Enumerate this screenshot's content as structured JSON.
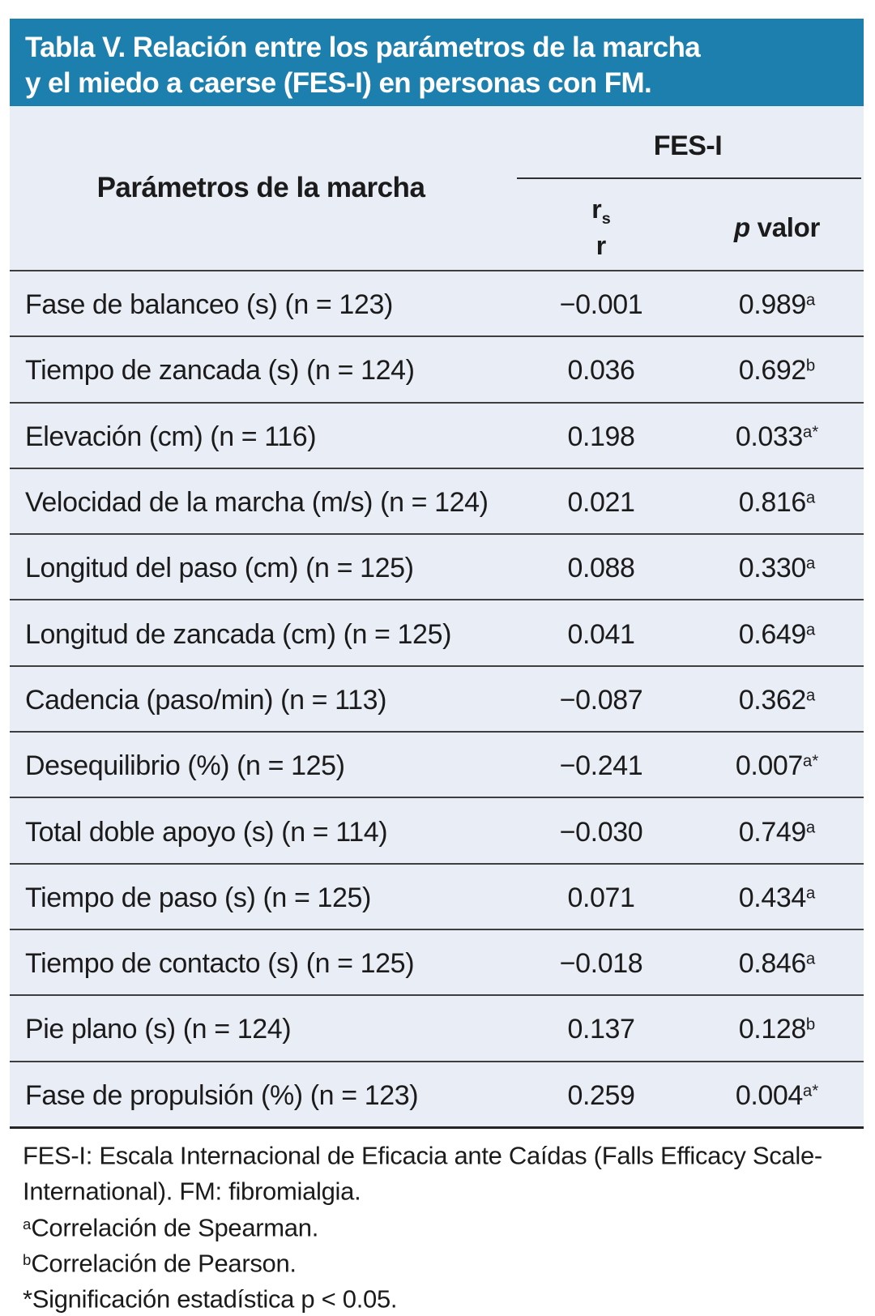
{
  "title": {
    "line1": "Tabla V. Relación entre los parámetros de la marcha",
    "line2": "y el miedo a caerse (FES-I) en personas con FM."
  },
  "table": {
    "param_header": "Parámetros de la marcha",
    "group_header": "FES-I",
    "col_r": {
      "base": "r",
      "sub": "s",
      "line2": "r"
    },
    "col_p": {
      "italic": "p",
      "rest": " valor"
    },
    "rows": [
      {
        "param": "Fase de balanceo (s) (n = 123)",
        "r": "−0.001",
        "p": "0.989",
        "p_sup": "a"
      },
      {
        "param": "Tiempo de zancada (s) (n = 124)",
        "r": "0.036",
        "p": "0.692",
        "p_sup": "b"
      },
      {
        "param": "Elevación (cm) (n = 116)",
        "r": "0.198",
        "p": "0.033",
        "p_sup": "a*"
      },
      {
        "param": "Velocidad de la marcha (m/s) (n = 124)",
        "r": "0.021",
        "p": "0.816",
        "p_sup": "a"
      },
      {
        "param": "Longitud del paso (cm) (n = 125)",
        "r": "0.088",
        "p": "0.330",
        "p_sup": "a"
      },
      {
        "param": "Longitud de zancada (cm) (n = 125)",
        "r": "0.041",
        "p": "0.649",
        "p_sup": "a"
      },
      {
        "param": "Cadencia (paso/min) (n = 113)",
        "r": "−0.087",
        "p": "0.362",
        "p_sup": "a"
      },
      {
        "param": "Desequilibrio (%) (n = 125)",
        "r": "−0.241",
        "p": "0.007",
        "p_sup": "a*"
      },
      {
        "param": "Total doble apoyo (s) (n = 114)",
        "r": "−0.030",
        "p": "0.749",
        "p_sup": "a"
      },
      {
        "param": "Tiempo de paso (s) (n = 125)",
        "r": "0.071",
        "p": "0.434",
        "p_sup": "a"
      },
      {
        "param": "Tiempo de contacto (s) (n = 125)",
        "r": "−0.018",
        "p": "0.846",
        "p_sup": "a"
      },
      {
        "param": "Pie plano (s) (n = 124)",
        "r": "0.137",
        "p": "0.128",
        "p_sup": "b"
      },
      {
        "param": "Fase de propulsión (%) (n = 123)",
        "r": "0.259",
        "p": "0.004",
        "p_sup": "a*"
      }
    ]
  },
  "footnotes": [
    {
      "sup": "",
      "text": "FES-I: Escala Internacional de Eficacia ante Caídas (Falls Efficacy Scale-"
    },
    {
      "sup": "",
      "text": "International). FM: fibromialgia."
    },
    {
      "sup": "a",
      "text": "Correlación de Spearman."
    },
    {
      "sup": "b",
      "text": "Correlación de Pearson."
    },
    {
      "sup": "",
      "text": "*Significación estadística p < 0.05."
    }
  ],
  "colors": {
    "header_bg": "#1d7fad",
    "table_bg": "#e9edf6",
    "line": "#3e3e3e",
    "text": "#1b1b1b",
    "title_text": "#ffffff"
  }
}
